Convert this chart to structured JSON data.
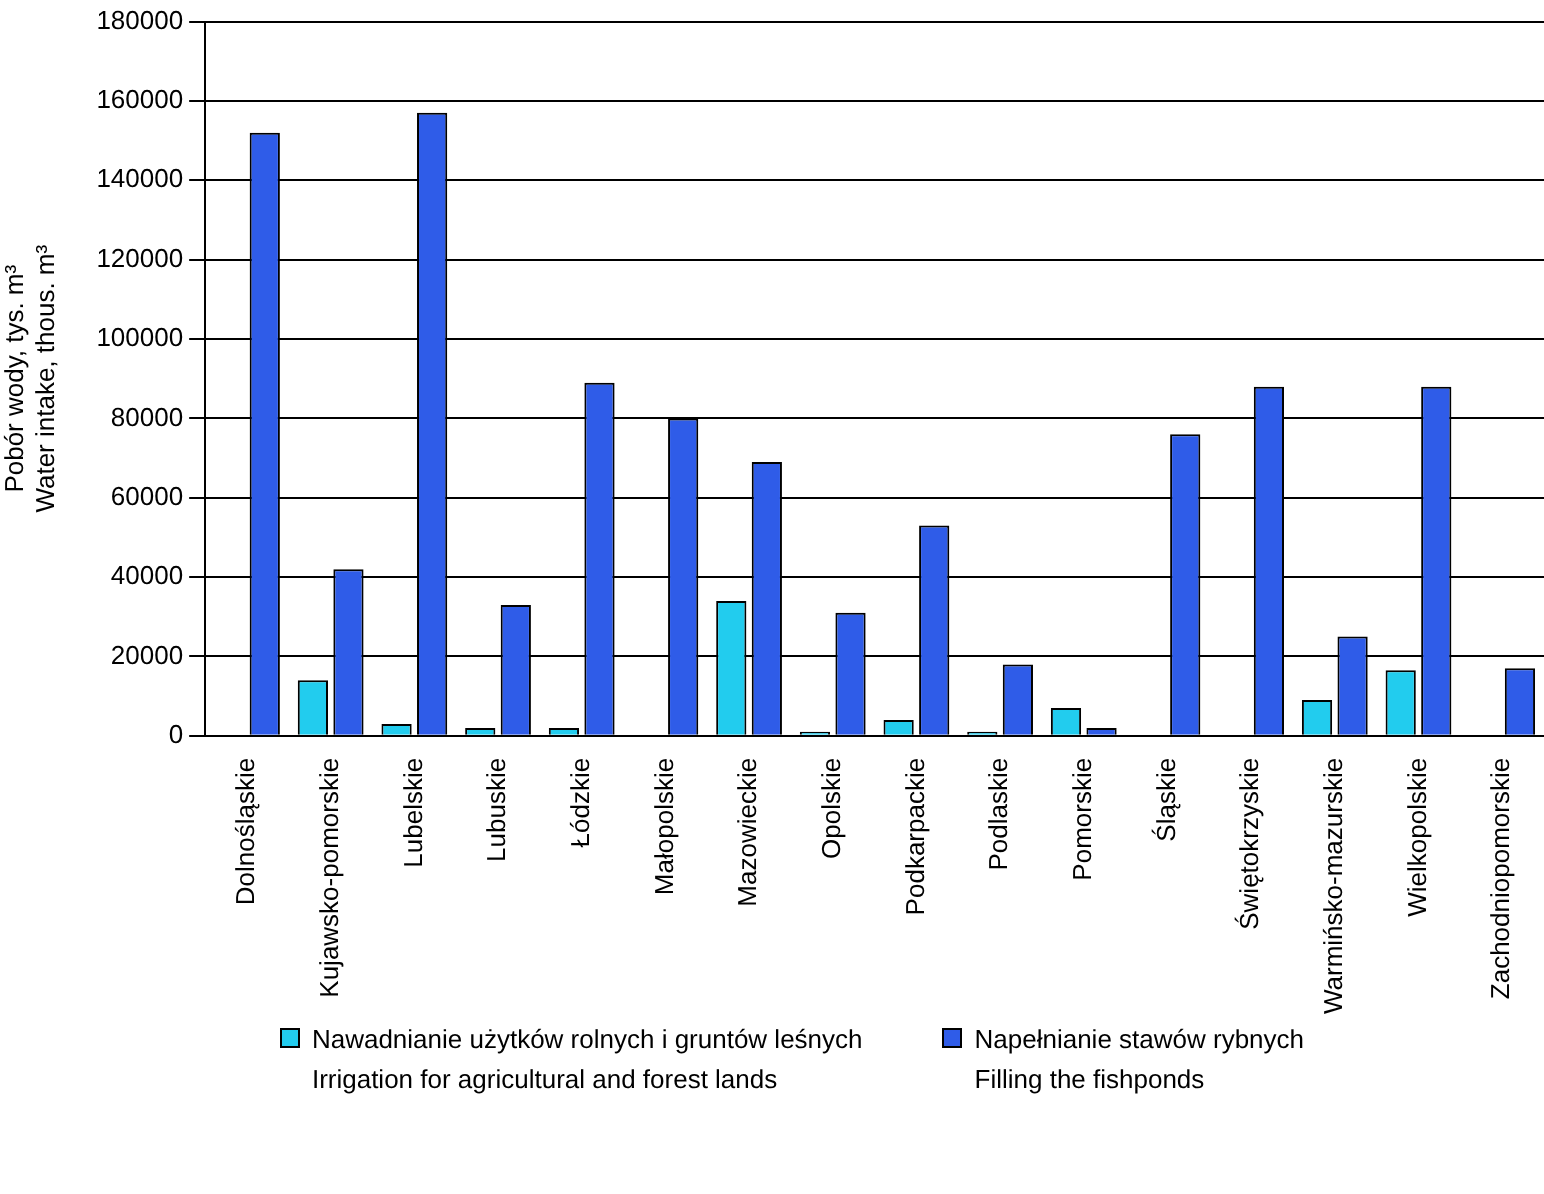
{
  "chart_data": {
    "type": "bar",
    "ylabel": "Pobór wody, tys. m³\nWater intake, thous. m³",
    "categories": [
      "Dolnośląskie",
      "Kujawsko-pomorskie",
      "Lubelskie",
      "Lubuskie",
      "Łódzkie",
      "Małopolskie",
      "Mazowieckie",
      "Opolskie",
      "Podkarpackie",
      "Podlaskie",
      "Pomorskie",
      "Śląskie",
      "Świętokrzyskie",
      "Warmińsko-mazurskie",
      "Wielkopolskie",
      "Zachodniopomorskie"
    ],
    "series": [
      {
        "name": "Nawadnianie użytków rolnych i gruntów leśnych\nIrrigation for agricultural and forest lands",
        "color": "#22ccee",
        "values": [
          0,
          14000,
          3000,
          2000,
          2000,
          0,
          34000,
          1000,
          4000,
          1000,
          7000,
          0,
          0,
          9000,
          16500,
          0
        ]
      },
      {
        "name": "Napełnianie stawów rybnych\nFilling the fishponds",
        "color": "#2f5ce8",
        "values": [
          152000,
          42000,
          157000,
          33000,
          89000,
          80000,
          69000,
          31000,
          53000,
          18000,
          2000,
          76000,
          88000,
          25000,
          88000,
          17000
        ]
      }
    ],
    "ylim": [
      0,
      180000
    ],
    "yticks": [
      0,
      20000,
      40000,
      60000,
      80000,
      100000,
      120000,
      140000,
      160000,
      180000
    ],
    "grid": "y",
    "legend": "bottom"
  }
}
